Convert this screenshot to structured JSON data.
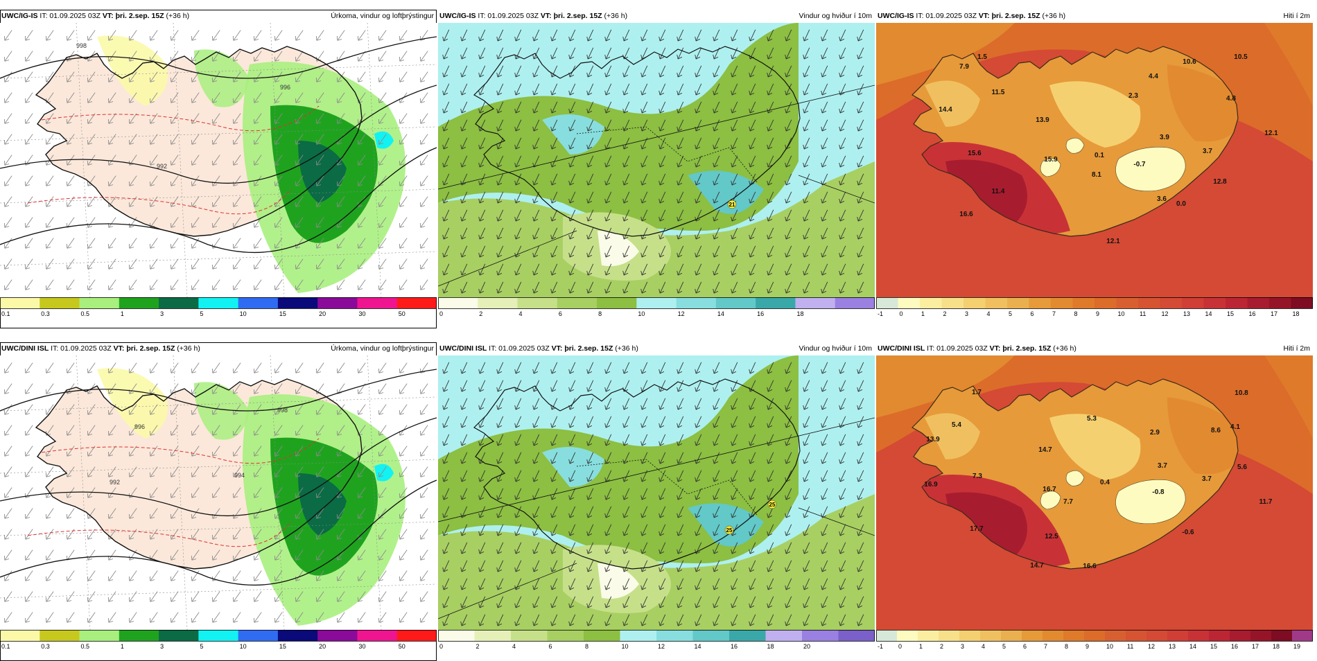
{
  "panels": [
    {
      "id": "p1",
      "kind": "precip",
      "model": "UWC/IG-IS",
      "it_label": "IT:",
      "it": "01.09.2025 03Z",
      "vt_label": "VT:",
      "vt": "þri. 2.sep. 15Z",
      "lead": "(+36 h)",
      "title": "Úrkoma, vindur og loftþrýstingur",
      "colorbar": {
        "ticks": [
          "0.1",
          "0.3",
          "0.5",
          "1",
          "3",
          "5",
          "10",
          "15",
          "20",
          "30",
          "50"
        ],
        "colors": [
          "#fbf9a8",
          "#c7c81e",
          "#a8ef7e",
          "#1fa31f",
          "#0a6b45",
          "#12f2f2",
          "#2f6cf2",
          "#0a0a7a",
          "#8a0a9a",
          "#ef1590",
          "#ff1a1a"
        ]
      },
      "isobars": [
        "996",
        "992",
        "998"
      ]
    },
    {
      "id": "p2",
      "kind": "wind",
      "model": "UWC/IG-IS",
      "it_label": "IT:",
      "it": "01.09.2025 03Z",
      "vt_label": "VT:",
      "vt": "þri. 2.sep. 15Z",
      "lead": "(+36 h)",
      "title": "Vindur og hviður í 10m",
      "colorbar": {
        "ticks": [
          "0",
          "2",
          "4",
          "6",
          "8",
          "10",
          "12",
          "14",
          "16",
          "18"
        ],
        "colors": [
          "#fafbe8",
          "#e4f0b8",
          "#c6e08a",
          "#a8cf62",
          "#8cbf42",
          "#aef0f0",
          "#88dede",
          "#62c8c8",
          "#3aa8a8",
          "#c0b0f0",
          "#9a80e0"
        ]
      },
      "gusts": [
        "21"
      ]
    },
    {
      "id": "p3",
      "kind": "temp",
      "model": "UWC/IG-IS",
      "it_label": "IT:",
      "it": "01.09.2025 03Z",
      "vt_label": "VT:",
      "vt": "þri. 2.sep. 15Z",
      "lead": "(+36 h)",
      "title": "Hiti í 2m",
      "colorbar": {
        "ticks": [
          "-1",
          "0",
          "1",
          "2",
          "3",
          "4",
          "5",
          "6",
          "7",
          "8",
          "9",
          "10",
          "11",
          "12",
          "13",
          "14",
          "15",
          "16",
          "17",
          "18"
        ],
        "colors": [
          "#d8e8d8",
          "#fdfbc0",
          "#fbeea0",
          "#f8e08a",
          "#f5d070",
          "#f0c060",
          "#eab050",
          "#e69a3a",
          "#e28a30",
          "#df7a2a",
          "#dc6c2a",
          "#d86030",
          "#d65432",
          "#d44a34",
          "#d03e36",
          "#c83236",
          "#bc2634",
          "#a81c30",
          "#961428",
          "#7e0c22"
        ]
      },
      "labels": [
        {
          "t": "1.5"
        },
        {
          "t": "7.9"
        },
        {
          "t": "11.5"
        },
        {
          "t": "10.6"
        },
        {
          "t": "10.5"
        },
        {
          "t": "4.4"
        },
        {
          "t": "2.3"
        },
        {
          "t": "4.8"
        },
        {
          "t": "14.4"
        },
        {
          "t": "13.9"
        },
        {
          "t": "3.9"
        },
        {
          "t": "12.1"
        },
        {
          "t": "15.6"
        },
        {
          "t": "15.9"
        },
        {
          "t": "0.1"
        },
        {
          "t": "3.7"
        },
        {
          "t": "-0.7"
        },
        {
          "t": "8.1"
        },
        {
          "t": "12.8"
        },
        {
          "t": "11.4"
        },
        {
          "t": "3.6"
        },
        {
          "t": "0.0"
        },
        {
          "t": "16.6"
        },
        {
          "t": "12.1"
        }
      ]
    },
    {
      "id": "p4",
      "kind": "precip",
      "model": "UWC/DINI ISL",
      "it_label": "IT:",
      "it": "01.09.2025 03Z",
      "vt_label": "VT:",
      "vt": "þri. 2.sep. 15Z",
      "lead": "(+36 h)",
      "title": "Úrkoma, vindur og loftþrýstingur",
      "colorbar": {
        "ticks": [
          "0.1",
          "0.3",
          "0.5",
          "1",
          "3",
          "5",
          "10",
          "15",
          "20",
          "30",
          "50"
        ],
        "colors": [
          "#fbf9a8",
          "#c7c81e",
          "#a8ef7e",
          "#1fa31f",
          "#0a6b45",
          "#12f2f2",
          "#2f6cf2",
          "#0a0a7a",
          "#8a0a9a",
          "#ef1590",
          "#ff1a1a"
        ]
      },
      "isobars": [
        "998",
        "994",
        "992",
        "996"
      ]
    },
    {
      "id": "p5",
      "kind": "wind",
      "model": "UWC/DINI ISL",
      "it_label": "IT:",
      "it": "01.09.2025 03Z",
      "vt_label": "VT:",
      "vt": "þri. 2.sep. 15Z",
      "lead": "(+36 h)",
      "title": "Vindur og hviður í 10m",
      "colorbar": {
        "ticks": [
          "0",
          "2",
          "4",
          "6",
          "8",
          "10",
          "12",
          "14",
          "16",
          "18",
          "20"
        ],
        "colors": [
          "#fafbe8",
          "#e4f0b8",
          "#c6e08a",
          "#a8cf62",
          "#8cbf42",
          "#aef0f0",
          "#88dede",
          "#62c8c8",
          "#3aa8a8",
          "#c0b0f0",
          "#9a80e0",
          "#7a60c8"
        ]
      },
      "gusts": [
        "25",
        "25"
      ]
    },
    {
      "id": "p6",
      "kind": "temp",
      "model": "UWC/DINI ISL",
      "it_label": "IT:",
      "it": "01.09.2025 03Z",
      "vt_label": "VT:",
      "vt": "þri. 2.sep. 15Z",
      "lead": "(+36 h)",
      "title": "Hiti í 2m",
      "colorbar": {
        "ticks": [
          "-1",
          "0",
          "1",
          "2",
          "3",
          "4",
          "5",
          "6",
          "7",
          "8",
          "9",
          "10",
          "11",
          "12",
          "13",
          "14",
          "15",
          "16",
          "17",
          "18",
          "19"
        ],
        "colors": [
          "#d8e8d8",
          "#fdfbc0",
          "#fbeea0",
          "#f8e08a",
          "#f5d070",
          "#f0c060",
          "#eab050",
          "#e69a3a",
          "#e28a30",
          "#df7a2a",
          "#dc6c2a",
          "#d86030",
          "#d65432",
          "#d44a34",
          "#d03e36",
          "#c83236",
          "#bc2634",
          "#a81c30",
          "#961428",
          "#7e0c22",
          "#a03a88"
        ]
      },
      "labels": [
        {
          "t": "1.7"
        },
        {
          "t": "10.8"
        },
        {
          "t": "5.3"
        },
        {
          "t": "5.4"
        },
        {
          "t": "2.9"
        },
        {
          "t": "8.6"
        },
        {
          "t": "4.1"
        },
        {
          "t": "13.9"
        },
        {
          "t": "14.7"
        },
        {
          "t": "3.7"
        },
        {
          "t": "5.6"
        },
        {
          "t": "7.3"
        },
        {
          "t": "3.7"
        },
        {
          "t": "16.9"
        },
        {
          "t": "0.4"
        },
        {
          "t": "16.7"
        },
        {
          "t": "-0.8"
        },
        {
          "t": "7.7"
        },
        {
          "t": "11.7"
        },
        {
          "t": "17.7"
        },
        {
          "t": "12.5"
        },
        {
          "t": "-0.6"
        },
        {
          "t": "14.7"
        },
        {
          "t": "16.6"
        }
      ]
    }
  ]
}
